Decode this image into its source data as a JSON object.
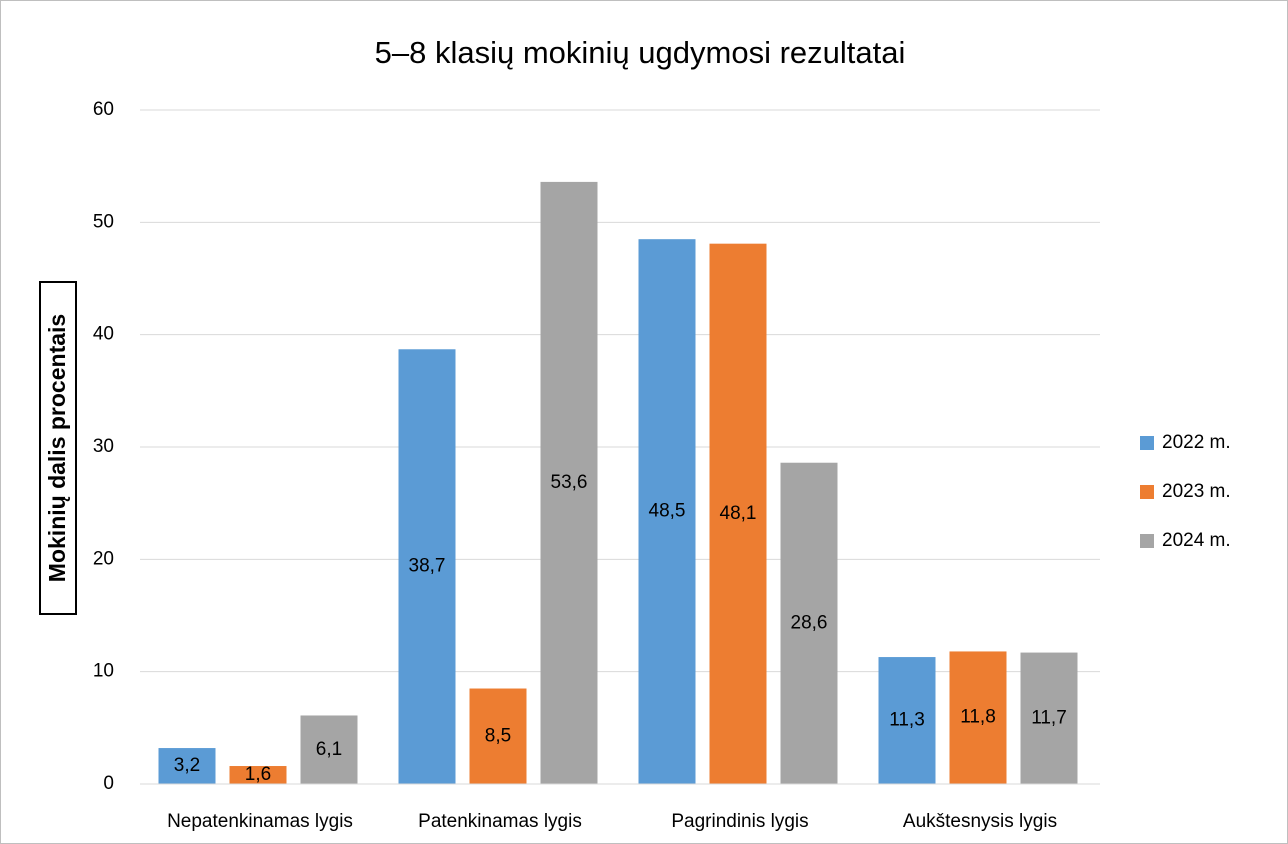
{
  "chart_data": {
    "type": "bar",
    "title": "5–8 klasių mokinių ugdymosi rezultatai",
    "y_label": "Mokinių dalis procentais",
    "categories": [
      "Nepatenkinamas lygis",
      "Patenkinamas lygis",
      "Pagrindinis lygis",
      "Aukštesnysis lygis"
    ],
    "series": [
      {
        "name": "2022 m.",
        "color": "#5b9bd5",
        "values": [
          3.2,
          38.7,
          48.5,
          11.3
        ],
        "value_labels": [
          "3,2",
          "38,7",
          "48,5",
          "11,3"
        ]
      },
      {
        "name": "2023 m.",
        "color": "#ed7d31",
        "values": [
          1.6,
          8.5,
          48.1,
          11.8
        ],
        "value_labels": [
          "1,6",
          "8,5",
          "48,1",
          "11,8"
        ]
      },
      {
        "name": "2024 m.",
        "color": "#a5a5a5",
        "values": [
          6.1,
          53.6,
          28.6,
          11.7
        ],
        "value_labels": [
          "6,1",
          "53,6",
          "28,6",
          "11,7"
        ]
      }
    ],
    "ylim": [
      0,
      60
    ],
    "yticks": [
      0,
      10,
      20,
      30,
      40,
      50,
      60
    ],
    "grid": true,
    "legend": "right"
  }
}
